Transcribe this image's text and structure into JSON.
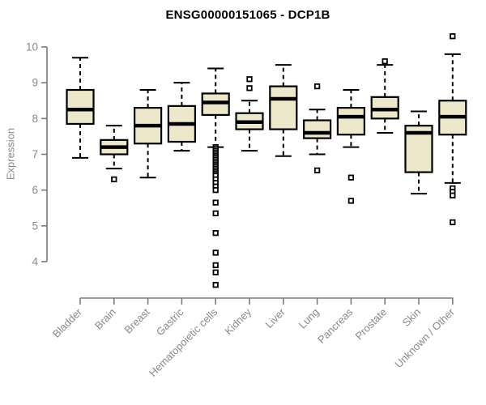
{
  "chart_data": {
    "type": "boxplot",
    "title": "ENSG00000151065 - DCP1B",
    "ylabel": "Expression",
    "xlabel": "",
    "yticks": [
      4,
      5,
      6,
      7,
      8,
      9,
      10
    ],
    "ylim": [
      3.2,
      10.5
    ],
    "grid": false,
    "legend": "none",
    "categories": [
      "Bladder",
      "Brain",
      "Breast",
      "Gastric",
      "Hematopoietic cells",
      "Kidney",
      "Liver",
      "Lung",
      "Pancreas",
      "Prostate",
      "Skin",
      "Unknown / Other"
    ],
    "series": [
      {
        "name": "Bladder",
        "whisker_high": 9.7,
        "q3": 8.8,
        "median": 8.25,
        "q1": 7.85,
        "whisker_low": 6.9,
        "outliers": []
      },
      {
        "name": "Brain",
        "whisker_high": 7.8,
        "q3": 7.4,
        "median": 7.2,
        "q1": 7.0,
        "whisker_low": 6.6,
        "outliers": [
          6.3
        ]
      },
      {
        "name": "Breast",
        "whisker_high": 8.8,
        "q3": 8.3,
        "median": 7.8,
        "q1": 7.3,
        "whisker_low": 6.35,
        "outliers": []
      },
      {
        "name": "Gastric",
        "whisker_high": 9.0,
        "q3": 8.35,
        "median": 7.85,
        "q1": 7.35,
        "whisker_low": 7.1,
        "outliers": []
      },
      {
        "name": "Hematopoietic cells",
        "whisker_high": 9.4,
        "q3": 8.7,
        "median": 8.45,
        "q1": 8.1,
        "whisker_low": 7.2,
        "outliers": [
          7.2,
          7.15,
          7.1,
          7.05,
          7.0,
          6.95,
          6.9,
          6.85,
          6.8,
          6.75,
          6.7,
          6.65,
          6.6,
          6.55,
          6.5,
          6.45,
          6.4,
          6.3,
          6.2,
          6.1,
          6.0,
          5.65,
          5.35,
          4.8,
          4.25,
          3.9,
          3.7,
          3.35
        ]
      },
      {
        "name": "Kidney",
        "whisker_high": 8.5,
        "q3": 8.15,
        "median": 7.9,
        "q1": 7.7,
        "whisker_low": 7.1,
        "outliers": [
          9.1,
          8.85
        ]
      },
      {
        "name": "Liver",
        "whisker_high": 9.5,
        "q3": 8.9,
        "median": 8.55,
        "q1": 7.7,
        "whisker_low": 6.95,
        "outliers": []
      },
      {
        "name": "Lung",
        "whisker_high": 8.25,
        "q3": 7.95,
        "median": 7.6,
        "q1": 7.45,
        "whisker_low": 7.0,
        "outliers": [
          8.9,
          6.55
        ]
      },
      {
        "name": "Pancreas",
        "whisker_high": 8.8,
        "q3": 8.3,
        "median": 8.05,
        "q1": 7.55,
        "whisker_low": 7.2,
        "outliers": [
          6.35,
          5.7
        ]
      },
      {
        "name": "Prostate",
        "whisker_high": 9.5,
        "q3": 8.6,
        "median": 8.25,
        "q1": 8.0,
        "whisker_low": 7.6,
        "outliers": [
          9.6
        ]
      },
      {
        "name": "Skin",
        "whisker_high": 8.2,
        "q3": 7.8,
        "median": 7.6,
        "q1": 6.5,
        "whisker_low": 5.9,
        "outliers": []
      },
      {
        "name": "Unknown / Other",
        "whisker_high": 9.8,
        "q3": 8.5,
        "median": 8.05,
        "q1": 7.55,
        "whisker_low": 6.2,
        "outliers": [
          10.3,
          6.05,
          5.95,
          5.85,
          5.1
        ]
      }
    ]
  },
  "colors": {
    "box_fill": "#EDE7CB",
    "box_stroke": "#000000",
    "median": "#000000",
    "whisker": "#000000",
    "outlier_stroke": "#000000",
    "outlier_fill": "#FFFFFF",
    "axis": "#7a7a7a",
    "tick_label": "#8a8a8a",
    "title": "#000000",
    "background": "#FFFFFF"
  }
}
